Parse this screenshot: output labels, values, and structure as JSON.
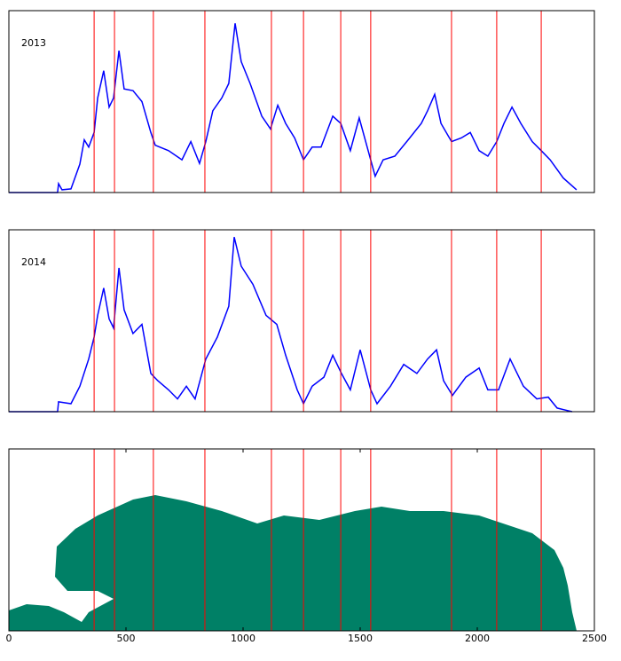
{
  "chart_data": [
    {
      "type": "line",
      "label": "2013",
      "color": "#0000ff",
      "x": [
        0,
        208,
        212,
        227,
        265,
        303,
        322,
        341,
        364,
        379,
        405,
        428,
        447,
        470,
        492,
        530,
        568,
        606,
        625,
        682,
        739,
        777,
        814,
        841,
        871,
        909,
        939,
        966,
        992,
        1030,
        1080,
        1117,
        1148,
        1182,
        1220,
        1258,
        1295,
        1333,
        1383,
        1417,
        1458,
        1496,
        1534,
        1564,
        1598,
        1648,
        1705,
        1761,
        1788,
        1818,
        1845,
        1890,
        1932,
        1970,
        2008,
        2045,
        2083,
        2114,
        2148,
        2186,
        2235,
        2273,
        2311,
        2367,
        2424
      ],
      "values": [
        0,
        0,
        4.9,
        1.5,
        2,
        15.6,
        29,
        25,
        33,
        52,
        67,
        47,
        52,
        78,
        57,
        56,
        50,
        33,
        26,
        23,
        18,
        28,
        16,
        28,
        45,
        52,
        60,
        93,
        72,
        60,
        42,
        35,
        48,
        38,
        30,
        18,
        25,
        25,
        42,
        38,
        23,
        41,
        23,
        9,
        18,
        20,
        29,
        38,
        45,
        54,
        38,
        28,
        30,
        33,
        23,
        20,
        28,
        38,
        47,
        38,
        28,
        23,
        18,
        8,
        1.5
      ],
      "xlim": [
        0,
        2500
      ],
      "ylim": [
        0,
        100
      ],
      "vlines": [
        364,
        451,
        617,
        837,
        1121,
        1258,
        1417,
        1545,
        1890,
        2083,
        2273
      ],
      "vline_color": "#ff0000"
    },
    {
      "type": "line",
      "label": "2014",
      "color": "#0000ff",
      "x": [
        0,
        208,
        212,
        265,
        303,
        341,
        364,
        379,
        405,
        428,
        447,
        470,
        492,
        530,
        568,
        606,
        636,
        682,
        720,
        758,
        795,
        841,
        890,
        939,
        962,
        992,
        1042,
        1098,
        1144,
        1182,
        1231,
        1258,
        1295,
        1345,
        1383,
        1420,
        1458,
        1500,
        1545,
        1572,
        1629,
        1686,
        1742,
        1788,
        1826,
        1856,
        1894,
        1951,
        2008,
        2045,
        2091,
        2140,
        2197,
        2254,
        2303,
        2341,
        2405
      ],
      "values": [
        0,
        0,
        5.4,
        4.4,
        14,
        29,
        41,
        53,
        68,
        51,
        46,
        79,
        56,
        43,
        48,
        21,
        17,
        12,
        7,
        14,
        7,
        29,
        41,
        58,
        96,
        80,
        70,
        53,
        48,
        31,
        12,
        4.4,
        14,
        19,
        31,
        21,
        12,
        34,
        12,
        4.4,
        14,
        26,
        21,
        29,
        34,
        17,
        9,
        19,
        24,
        12,
        12,
        29,
        14,
        7,
        8,
        2,
        0
      ],
      "xlim": [
        0,
        2500
      ],
      "ylim": [
        0,
        100
      ],
      "vlines": [
        364,
        451,
        617,
        837,
        1121,
        1258,
        1417,
        1545,
        1890,
        2083,
        2273
      ],
      "vline_color": "#ff0000"
    },
    {
      "type": "map",
      "land_color": "#008066",
      "xlim": [
        0,
        2500
      ],
      "xticks": [
        0,
        500,
        1000,
        1500,
        2000,
        2500
      ],
      "vlines": [
        364,
        451,
        617,
        837,
        1121,
        1258,
        1417,
        1545,
        1890,
        2083,
        2273
      ],
      "vline_color": "#ff0000"
    }
  ]
}
